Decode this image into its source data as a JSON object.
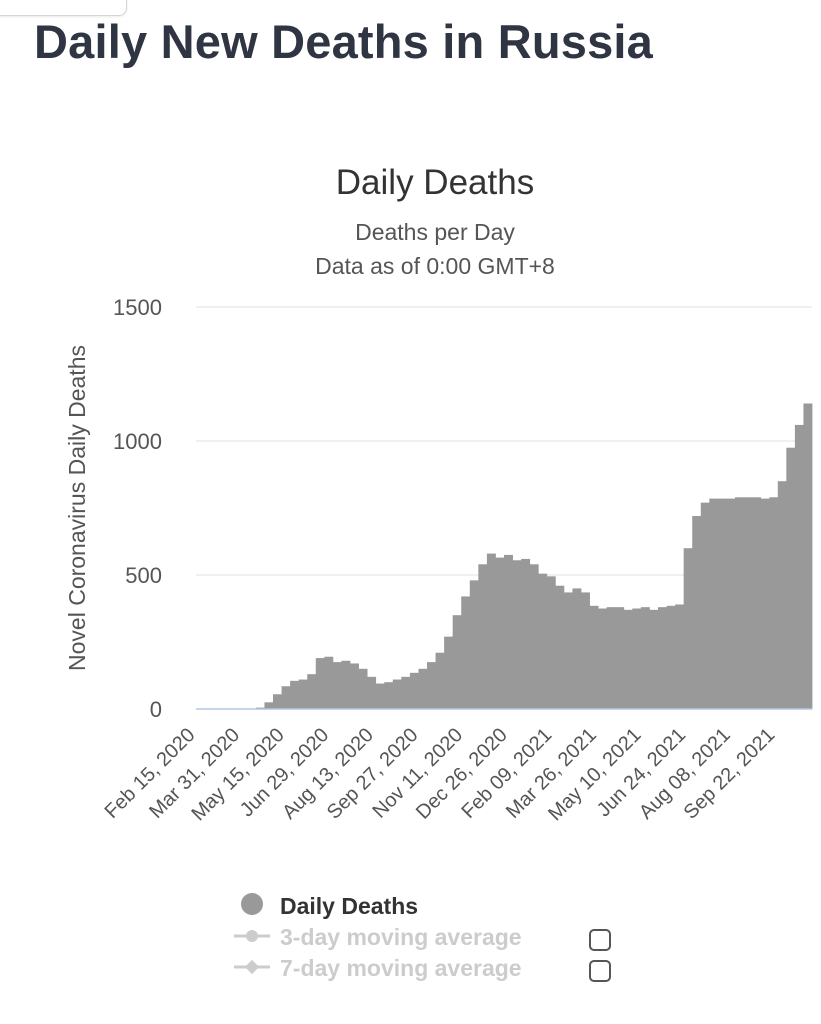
{
  "page": {
    "title": "Daily New Deaths in Russia",
    "top_tab_label": ""
  },
  "chart_data": {
    "type": "bar",
    "title": "Daily Deaths",
    "subtitle_line1": "Deaths per Day",
    "subtitle_line2": "Data as of 0:00 GMT+8",
    "ylabel": "Novel Coronavirus Daily Deaths",
    "xlabel": "",
    "ylim": [
      0,
      1500
    ],
    "yticks": [
      0,
      500,
      1000,
      1500
    ],
    "xtick_labels": [
      "Feb 15, 2020",
      "Mar 31, 2020",
      "May 15, 2020",
      "Jun 29, 2020",
      "Aug 13, 2020",
      "Sep 27, 2020",
      "Nov 11, 2020",
      "Dec 26, 2020",
      "Feb 09, 2021",
      "Mar 26, 2021",
      "May 10, 2021",
      "Jun 24, 2021",
      "Aug 08, 2021",
      "Sep 22, 2021"
    ],
    "grid": true,
    "legend_position": "bottom",
    "bar_color": "#999999",
    "series": [
      {
        "name": "Daily Deaths",
        "x_start": "Feb 15, 2020",
        "x_end": "Oct 31, 2021",
        "x_unit": "week",
        "values": [
          0,
          0,
          0,
          0,
          0,
          0,
          0,
          5,
          25,
          55,
          85,
          105,
          110,
          130,
          190,
          195,
          175,
          180,
          170,
          150,
          120,
          95,
          100,
          110,
          120,
          135,
          150,
          175,
          210,
          270,
          350,
          420,
          480,
          540,
          580,
          565,
          575,
          555,
          560,
          540,
          505,
          495,
          460,
          435,
          450,
          435,
          385,
          375,
          380,
          380,
          370,
          375,
          380,
          370,
          380,
          385,
          390,
          600,
          720,
          770,
          785,
          785,
          785,
          790,
          790,
          790,
          785,
          790,
          850,
          975,
          1060,
          1140
        ]
      },
      {
        "name": "3-day moving average",
        "visible": false,
        "values": []
      },
      {
        "name": "7-day moving average",
        "visible": false,
        "values": []
      }
    ]
  },
  "colors": {
    "title": "#2f3542",
    "bars": "#999999",
    "grid": "#e6e6e6",
    "baseline": "#b3c6e6",
    "text": "#555555",
    "legend_active": "#333333",
    "legend_inactive": "#cccccc"
  },
  "icons": {
    "legend_marker_daily": "circle-icon",
    "legend_marker_3day": "line-circle-icon",
    "legend_marker_7day": "line-diamond-icon",
    "checkbox": "checkbox-icon"
  }
}
